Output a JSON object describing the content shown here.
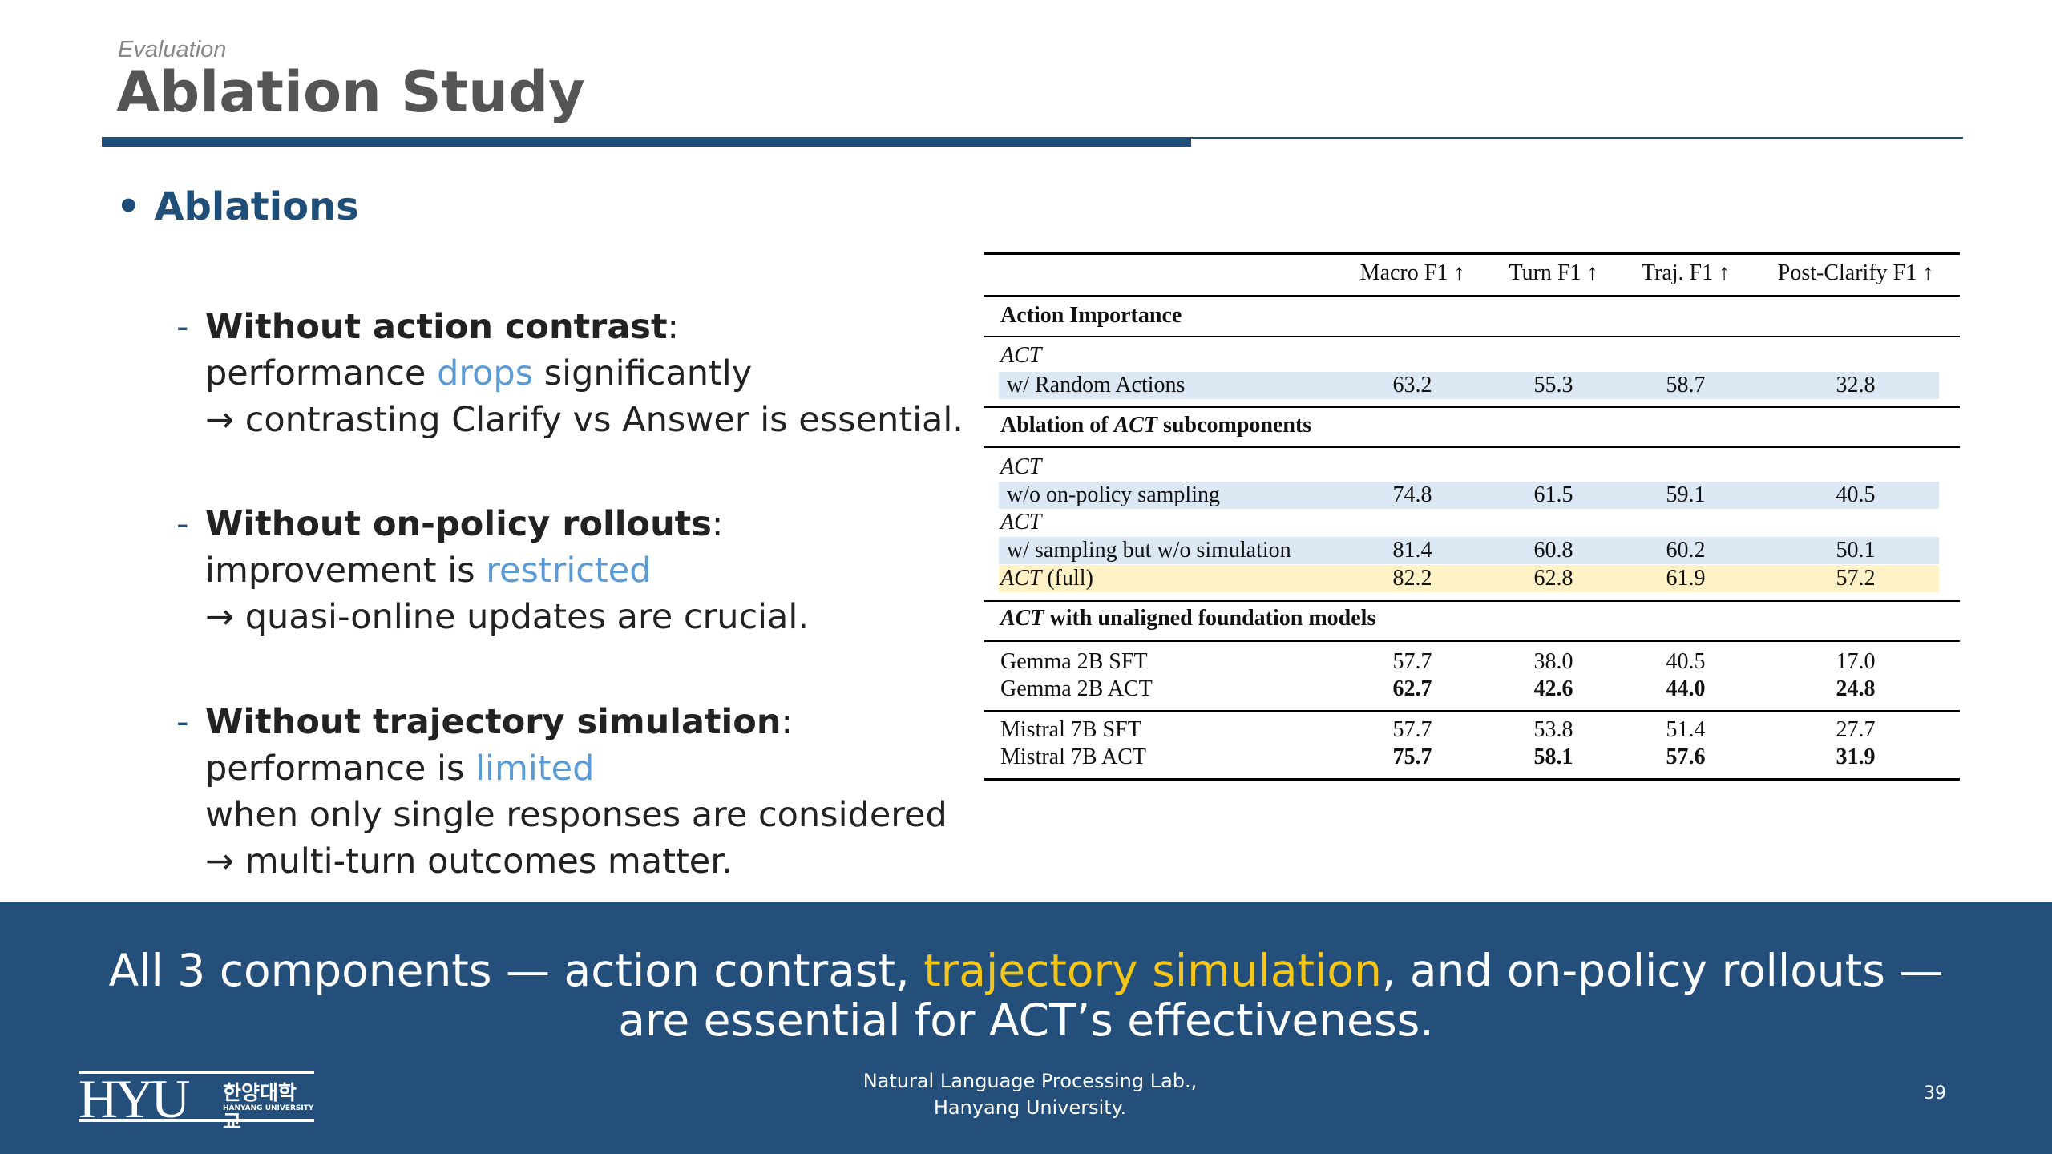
{
  "header": {
    "kicker": "Evaluation",
    "title": "Ablation Study"
  },
  "section": {
    "bullet": "•",
    "title": "Ablations"
  },
  "items": [
    {
      "heading": "Without action contrast",
      "line1_pre": "performance ",
      "line1_hl": "drops",
      "line1_post": " significantly",
      "line2": "→ contrasting Clarify vs Answer is essential."
    },
    {
      "heading": "Without on-policy rollouts",
      "line1_pre": "improvement is ",
      "line1_hl": "restricted",
      "line2": "→ quasi-online updates are crucial."
    },
    {
      "heading": "Without trajectory simulation",
      "line1_pre": "performance is ",
      "line1_hl": "limited",
      "line2": "when only single responses are considered",
      "line3": "→ multi-turn outcomes matter."
    }
  ],
  "table": {
    "columns": [
      "Macro F1 ↑",
      "Turn F1 ↑",
      "Traj. F1 ↑",
      "Post-Clarify F1 ↑"
    ],
    "sections": {
      "s1": "Action Importance",
      "s2_pre": "Ablation of ",
      "s2_it": "ACT",
      "s2_post": " subcomponents",
      "s3_it": "ACT",
      "s3_post": " with unaligned foundation models"
    },
    "act": "ACT",
    "random": {
      "label": "w/ Random Actions",
      "values": [
        "63.2",
        "55.3",
        "58.7",
        "32.8"
      ]
    },
    "no_onpolicy": {
      "label": "w/o on-policy sampling",
      "values": [
        "74.8",
        "61.5",
        "59.1",
        "40.5"
      ]
    },
    "no_sim": {
      "label": "w/ sampling but w/o simulation",
      "values": [
        "81.4",
        "60.8",
        "60.2",
        "50.1"
      ]
    },
    "full": {
      "label_it": "ACT",
      "label_post": " (full)",
      "values": [
        "82.2",
        "62.8",
        "61.9",
        "57.2"
      ]
    },
    "gemma_sft": {
      "label": "Gemma 2B SFT",
      "values": [
        "57.7",
        "38.0",
        "40.5",
        "17.0"
      ]
    },
    "gemma_act": {
      "label": "Gemma 2B ACT",
      "values": [
        "62.7",
        "42.6",
        "44.0",
        "24.8"
      ]
    },
    "mistral_sft": {
      "label": "Mistral 7B SFT",
      "values": [
        "57.7",
        "53.8",
        "51.4",
        "27.7"
      ]
    },
    "mistral_act": {
      "label": "Mistral 7B ACT",
      "values": [
        "75.7",
        "58.1",
        "57.6",
        "31.9"
      ]
    }
  },
  "banner": {
    "pre": "All 3 components — action contrast, ",
    "hl": "trajectory simulation",
    "post": ", and on-policy rollouts —",
    "line2": "are essential for ACT’s effectiveness."
  },
  "footer": {
    "logo_text": "HYU",
    "logo_kr": "한양대학교",
    "logo_en": "HANYANG UNIVERSITY",
    "lab_line1": "Natural Language Processing Lab.,",
    "lab_line2": "Hanyang University.",
    "page": "39"
  },
  "colors": {
    "brand": "#1f4e79",
    "highlight": "#5b9bd5",
    "banner": "#234f7a",
    "yellow": "#f5c518",
    "band_blue": "#dce9f5",
    "band_yellow": "#fff2c6"
  }
}
